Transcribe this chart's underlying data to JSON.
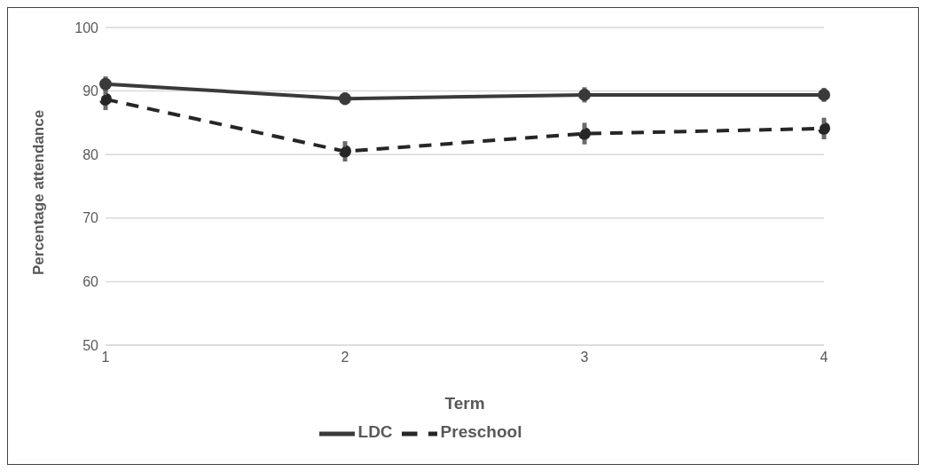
{
  "chart_data": {
    "type": "line",
    "xlabel": "Term",
    "ylabel": "Percentage attendance",
    "categories": [
      "1",
      "2",
      "3",
      "4"
    ],
    "series": [
      {
        "name": "Preschool",
        "color": "#262626",
        "line_style": "dashed",
        "values": [
          88.7,
          80.5,
          83.3,
          84.1
        ],
        "errors": [
          1.7,
          1.6,
          1.7,
          1.7
        ]
      },
      {
        "name": "LDC",
        "color": "#3a3a3a",
        "line_style": "solid",
        "values": [
          91.1,
          88.8,
          89.4,
          89.4
        ],
        "errors": [
          1.2,
          1.0,
          1.2,
          1.1
        ]
      }
    ],
    "ylim": [
      50,
      100
    ],
    "yticks": [
      50,
      60,
      70,
      80,
      90,
      100
    ],
    "grid": "y",
    "legend": "bottom",
    "marker": "circle"
  }
}
